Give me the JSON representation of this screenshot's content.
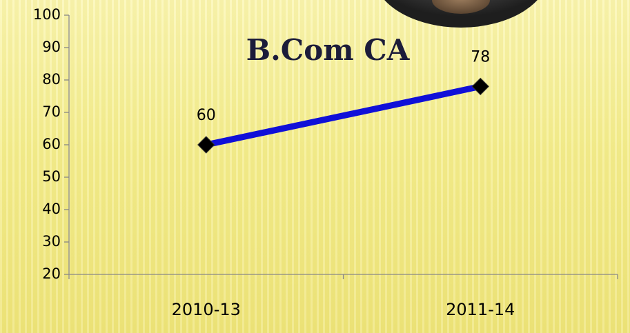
{
  "chart_data": {
    "type": "line",
    "title": "B.Com CA",
    "categories": [
      "2010-13",
      "2011-14"
    ],
    "series": [
      {
        "name": "B.Com CA",
        "color": "#1010d8",
        "values": [
          60,
          78
        ]
      }
    ],
    "ylim": [
      20,
      100
    ],
    "yticks": [
      20,
      30,
      40,
      50,
      60,
      70,
      80,
      90,
      100
    ],
    "marker_color": "#000000"
  }
}
